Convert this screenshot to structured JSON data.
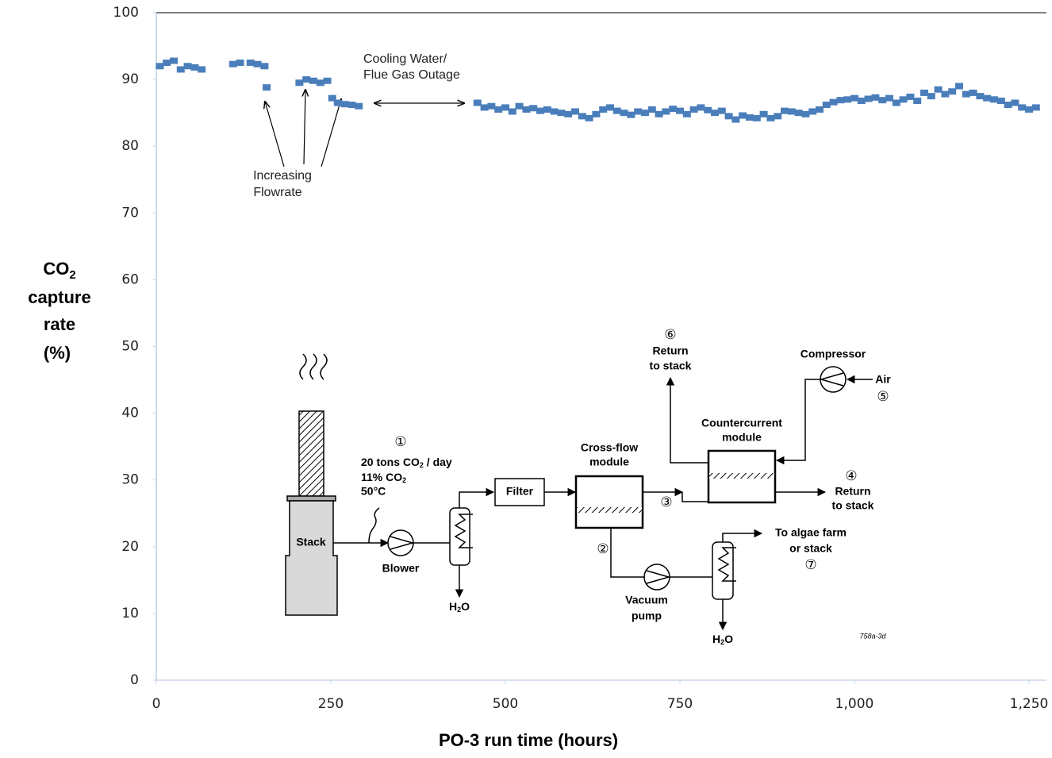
{
  "chart_data": {
    "type": "scatter",
    "x_label": "PO-3 run time (hours)",
    "y_label": {
      "main": "CO",
      "sub": "2",
      "line2": "capture",
      "line3": "rate",
      "line4": "(%)"
    },
    "annotations": [
      [
        "Increasing",
        "Flowrate"
      ],
      [
        "Cooling Water/",
        "Flue Gas Outage"
      ]
    ],
    "color": "#4a7ebb",
    "xlim": [
      0,
      1275
    ],
    "xticks": [
      0,
      250,
      500,
      750,
      {
        "value": 1000,
        "label": "1,000"
      },
      {
        "value": 1250,
        "label": "1,250"
      }
    ],
    "ylim": [
      0,
      100
    ],
    "yticks": [
      0,
      10,
      20,
      30,
      40,
      50,
      60,
      70,
      80,
      90,
      100
    ],
    "x": [
      5,
      15,
      25,
      35,
      45,
      55,
      65,
      110,
      120,
      135,
      145,
      155,
      158,
      205,
      215,
      225,
      235,
      245,
      252,
      260,
      270,
      280,
      290,
      460,
      470,
      480,
      490,
      500,
      510,
      520,
      530,
      540,
      550,
      560,
      570,
      580,
      590,
      600,
      610,
      620,
      630,
      640,
      650,
      660,
      670,
      680,
      690,
      700,
      710,
      720,
      730,
      740,
      750,
      760,
      770,
      780,
      790,
      800,
      810,
      820,
      830,
      840,
      850,
      860,
      870,
      880,
      890,
      900,
      910,
      920,
      930,
      940,
      950,
      960,
      970,
      980,
      990,
      1000,
      1010,
      1020,
      1030,
      1040,
      1050,
      1060,
      1070,
      1080,
      1090,
      1100,
      1110,
      1120,
      1130,
      1140,
      1150,
      1160,
      1170,
      1180,
      1190,
      1200,
      1210,
      1220,
      1230,
      1240,
      1250,
      1260
    ],
    "values": [
      92,
      92.5,
      92.8,
      91.5,
      92,
      91.8,
      91.5,
      92.3,
      92.5,
      92.5,
      92.3,
      92,
      88.8,
      89.5,
      90,
      89.8,
      89.5,
      89.8,
      87.2,
      86.5,
      86.3,
      86.2,
      86,
      86.5,
      85.8,
      86,
      85.5,
      85.8,
      85.2,
      86,
      85.5,
      85.7,
      85.3,
      85.5,
      85.2,
      85,
      84.8,
      85.2,
      84.5,
      84.2,
      84.8,
      85.5,
      85.8,
      85.3,
      85,
      84.7,
      85.2,
      85,
      85.5,
      84.8,
      85.2,
      85.6,
      85.3,
      84.8,
      85.5,
      85.8,
      85.4,
      85,
      85.3,
      84.5,
      84,
      84.6,
      84.3,
      84.2,
      84.8,
      84.2,
      84.5,
      85.3,
      85.2,
      85,
      84.8,
      85.2,
      85.5,
      86.2,
      86.6,
      86.9,
      87,
      87.2,
      86.8,
      87.1,
      87.3,
      86.9,
      87.2,
      86.5,
      87,
      87.4,
      86.8,
      88,
      87.5,
      88.5,
      87.8,
      88.2,
      89,
      87.8,
      88,
      87.5,
      87.2,
      87,
      86.8,
      86.2,
      86.5,
      85.8,
      85.5,
      85.8
    ]
  },
  "diagram": {
    "stack": "Stack",
    "blower": "Blower",
    "filter": "Filter",
    "stream1": {
      "num": "①",
      "line1": "20 tons CO",
      "line1_sub": "2",
      "line1_end": " / day",
      "line2": "11% CO",
      "line2_sub": "2",
      "line3": "50°C"
    },
    "water1": {
      "h": "H",
      "sub": "2",
      "o": "O"
    },
    "water2": {
      "h": "H",
      "sub": "2",
      "o": "O"
    },
    "crossflow": [
      "Cross-flow",
      "module"
    ],
    "countercurrent": [
      "Countercurrent",
      "module"
    ],
    "num2": "②",
    "num3": "③",
    "return4": {
      "num": "④",
      "line1": "Return",
      "line2": "to stack"
    },
    "return6": {
      "num": "⑥",
      "line1": "Return",
      "line2": "to stack"
    },
    "compressor": "Compressor",
    "air": {
      "label": "Air",
      "num": "⑤"
    },
    "vacuum": [
      "Vacuum",
      "pump"
    ],
    "algae": {
      "line1": "To algae farm",
      "line2": "or stack",
      "num": "⑦"
    },
    "code": "758a-3d"
  }
}
